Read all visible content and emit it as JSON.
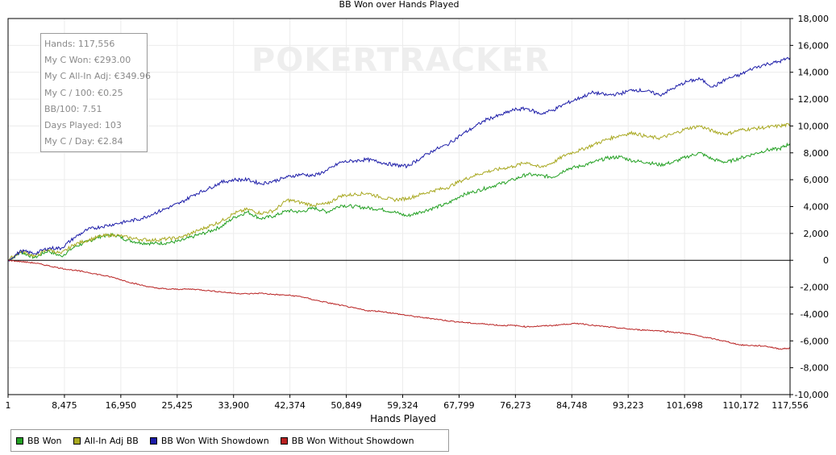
{
  "chart_data": {
    "type": "line",
    "title": "BB Won over Hands Played",
    "xlabel": "Hands Played",
    "ylabel": "",
    "xlim": [
      1,
      117556
    ],
    "ylim": [
      -10000,
      18000
    ],
    "x_ticks": [
      "1",
      "8,475",
      "16,950",
      "25,425",
      "33,900",
      "42,374",
      "50,849",
      "59,324",
      "67,799",
      "76,273",
      "84,748",
      "93,223",
      "101,698",
      "110,172",
      "117,556"
    ],
    "x_tick_values": [
      1,
      8475,
      16950,
      25425,
      33900,
      42374,
      50849,
      59324,
      67799,
      76273,
      84748,
      93223,
      101698,
      110172,
      117556
    ],
    "y_ticks": [
      "18,000",
      "16,000",
      "14,000",
      "12,000",
      "10,000",
      "8,000",
      "6,000",
      "4,000",
      "2,000",
      "0",
      "-2,000",
      "-4,000",
      "-6,000",
      "-8,000",
      "-10,000"
    ],
    "y_tick_values": [
      18000,
      16000,
      14000,
      12000,
      10000,
      8000,
      6000,
      4000,
      2000,
      0,
      -2000,
      -4000,
      -6000,
      -8000,
      -10000
    ],
    "y_axis_side": "right",
    "grid": true,
    "legend_position": "bottom-left",
    "watermark": "POKERTRACKER",
    "x": [
      0,
      2000,
      4000,
      6000,
      8000,
      10000,
      12000,
      14000,
      16000,
      18000,
      20000,
      22000,
      24000,
      26000,
      28000,
      30000,
      32000,
      34000,
      36000,
      38000,
      40000,
      42000,
      44000,
      46000,
      48000,
      50000,
      52000,
      54000,
      56000,
      58000,
      60000,
      62000,
      64000,
      66000,
      68000,
      70000,
      72000,
      74000,
      76000,
      78000,
      80000,
      82000,
      84000,
      86000,
      88000,
      90000,
      92000,
      94000,
      96000,
      98000,
      100000,
      102000,
      104000,
      106000,
      108000,
      110000,
      112000,
      114000,
      116000,
      117556
    ],
    "series": [
      {
        "name": "BB Won",
        "color": "#22a022",
        "values": [
          0,
          600,
          200,
          700,
          300,
          1000,
          1400,
          1800,
          1900,
          1500,
          1300,
          1250,
          1300,
          1450,
          1800,
          2100,
          2500,
          3200,
          3600,
          3100,
          3300,
          3700,
          3600,
          3900,
          3600,
          4100,
          4000,
          3900,
          3800,
          3600,
          3300,
          3600,
          3900,
          4200,
          4800,
          5100,
          5400,
          5700,
          6000,
          6400,
          6300,
          6200,
          6800,
          7000,
          7300,
          7600,
          7700,
          7400,
          7300,
          7100,
          7300,
          7700,
          8000,
          7500,
          7300,
          7600,
          7900,
          8200,
          8300,
          8700
        ]
      },
      {
        "name": "All-In Adj BB",
        "color": "#a8a820",
        "values": [
          0,
          700,
          300,
          800,
          500,
          1200,
          1500,
          1800,
          1900,
          1700,
          1550,
          1500,
          1600,
          1700,
          2100,
          2500,
          2900,
          3500,
          3800,
          3500,
          3700,
          4500,
          4300,
          4100,
          4200,
          4800,
          4900,
          5000,
          4700,
          4500,
          4600,
          4900,
          5200,
          5400,
          5900,
          6300,
          6600,
          6800,
          7000,
          7300,
          6900,
          7300,
          7900,
          8200,
          8600,
          9000,
          9300,
          9500,
          9200,
          9100,
          9400,
          9800,
          10000,
          9600,
          9400,
          9700,
          9800,
          9900,
          10000,
          10100
        ]
      },
      {
        "name": "BB Won With Showdown",
        "color": "#1c1ca8",
        "values": [
          0,
          700,
          500,
          900,
          900,
          1700,
          2300,
          2500,
          2700,
          2900,
          3100,
          3500,
          3900,
          4300,
          4900,
          5300,
          5800,
          6000,
          6000,
          5700,
          5900,
          6200,
          6400,
          6300,
          6700,
          7300,
          7400,
          7500,
          7300,
          7100,
          7000,
          7600,
          8200,
          8600,
          9300,
          9900,
          10500,
          10800,
          11200,
          11300,
          10900,
          11200,
          11700,
          12100,
          12500,
          12300,
          12400,
          12700,
          12600,
          12300,
          12800,
          13300,
          13500,
          12900,
          13500,
          13800,
          14300,
          14600,
          14800,
          15100
        ]
      },
      {
        "name": "BB Won Without Showdown",
        "color": "#b82020",
        "values": [
          0,
          -100,
          -200,
          -400,
          -600,
          -750,
          -900,
          -1100,
          -1300,
          -1600,
          -1850,
          -2050,
          -2150,
          -2150,
          -2150,
          -2250,
          -2350,
          -2450,
          -2500,
          -2450,
          -2550,
          -2600,
          -2700,
          -2950,
          -3150,
          -3350,
          -3550,
          -3750,
          -3800,
          -3950,
          -4100,
          -4250,
          -4350,
          -4500,
          -4600,
          -4700,
          -4750,
          -4850,
          -4850,
          -4950,
          -4900,
          -4850,
          -4750,
          -4700,
          -4850,
          -4950,
          -5050,
          -5150,
          -5200,
          -5250,
          -5350,
          -5450,
          -5650,
          -5850,
          -6050,
          -6300,
          -6350,
          -6400,
          -6600,
          -6550
        ]
      }
    ]
  },
  "stats": [
    "Hands: 117,556",
    "My C Won: €293.00",
    "My C All-In Adj: €349.96",
    "My C / 100: €0.25",
    "BB/100: 7.51",
    "Days Played: 103",
    "My C / Day: €2.84"
  ],
  "legend": [
    {
      "label": "BB Won",
      "color": "#22a022"
    },
    {
      "label": "All-In Adj BB",
      "color": "#a8a820"
    },
    {
      "label": "BB Won With Showdown",
      "color": "#1c1ca8"
    },
    {
      "label": "BB Won Without Showdown",
      "color": "#b82020"
    }
  ]
}
